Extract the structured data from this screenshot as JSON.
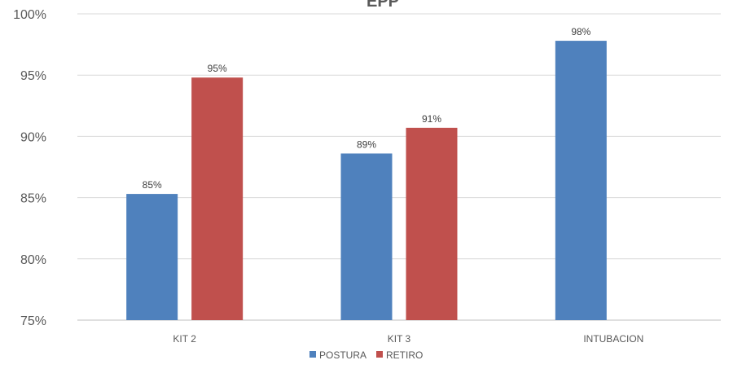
{
  "chart_data": {
    "type": "bar",
    "title": "EPP",
    "categories": [
      "KIT 2",
      "KIT 3",
      "INTUBACION"
    ],
    "series": [
      {
        "name": "POSTURA",
        "color": "#4f81bd",
        "values": [
          85.3,
          88.6,
          97.8
        ],
        "labels": [
          "85%",
          "89%",
          "98%"
        ]
      },
      {
        "name": "RETIRO",
        "color": "#c0504d",
        "values": [
          94.8,
          90.7,
          null
        ],
        "labels": [
          "95%",
          "91%",
          null
        ]
      }
    ],
    "ylim": [
      75,
      100
    ],
    "yticks": [
      {
        "value": 75,
        "label": "75%"
      },
      {
        "value": 80,
        "label": "80%"
      },
      {
        "value": 85,
        "label": "85%"
      },
      {
        "value": 90,
        "label": "90%"
      },
      {
        "value": 95,
        "label": "95%"
      },
      {
        "value": 100,
        "label": "100%"
      }
    ],
    "grid": true,
    "legend_position": "bottom",
    "xlabel": "",
    "ylabel": ""
  }
}
